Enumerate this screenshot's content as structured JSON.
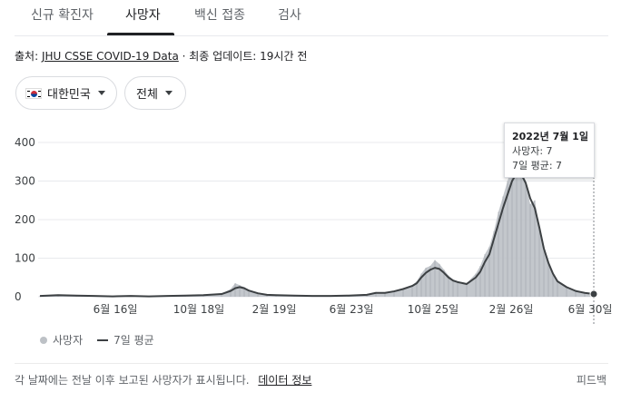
{
  "tabs": [
    {
      "label": "신규 확진자"
    },
    {
      "label": "사망자"
    },
    {
      "label": "백신 접종"
    },
    {
      "label": "검사"
    }
  ],
  "source": {
    "prefix": "출처:",
    "link": "JHU CSSE COVID-19 Data",
    "updated": "· 최종 업데이트: 19시간 전"
  },
  "filters": {
    "country": "대한민국",
    "region": "전체"
  },
  "tooltip": {
    "date": "2022년 7월 1일",
    "deaths": "사망자: 7",
    "avg": "7일 평균: 7"
  },
  "legend": {
    "bars": "사망자",
    "line": "7일 평균"
  },
  "footer": {
    "note": "각 날짜에는 전날 이후 보고된 사망자가 표시됩니다.",
    "link": "데이터 정보",
    "feedback": "피드백"
  },
  "colors": {
    "bars": "#bdc1c6",
    "line": "#3c4043",
    "grid": "#e8eaed"
  },
  "chart_data": {
    "type": "bar",
    "ylim": [
      0,
      400
    ],
    "y_ticks": [
      0,
      100,
      200,
      300,
      400
    ],
    "x_tick_labels": [
      "6월 16일",
      "10월 18일",
      "2월 19일",
      "6월 23일",
      "10월 25일",
      "2월 26일",
      "6월 30일"
    ],
    "series": [
      {
        "kind": "bar",
        "name": "사망자",
        "points": [
          [
            0,
            2
          ],
          [
            20,
            5
          ],
          [
            40,
            3
          ],
          [
            60,
            2
          ],
          [
            80,
            1
          ],
          [
            100,
            2
          ],
          [
            120,
            1
          ],
          [
            140,
            2
          ],
          [
            160,
            3
          ],
          [
            180,
            4
          ],
          [
            200,
            8
          ],
          [
            210,
            20
          ],
          [
            215,
            35
          ],
          [
            220,
            30
          ],
          [
            225,
            25
          ],
          [
            230,
            18
          ],
          [
            240,
            10
          ],
          [
            250,
            6
          ],
          [
            260,
            4
          ],
          [
            280,
            3
          ],
          [
            300,
            2
          ],
          [
            320,
            2
          ],
          [
            340,
            3
          ],
          [
            360,
            5
          ],
          [
            370,
            12
          ],
          [
            380,
            10
          ],
          [
            390,
            15
          ],
          [
            400,
            22
          ],
          [
            410,
            30
          ],
          [
            415,
            40
          ],
          [
            420,
            60
          ],
          [
            425,
            75
          ],
          [
            430,
            80
          ],
          [
            435,
            95
          ],
          [
            440,
            85
          ],
          [
            445,
            70
          ],
          [
            450,
            55
          ],
          [
            455,
            45
          ],
          [
            460,
            40
          ],
          [
            470,
            35
          ],
          [
            480,
            60
          ],
          [
            485,
            80
          ],
          [
            490,
            110
          ],
          [
            495,
            130
          ],
          [
            500,
            170
          ],
          [
            505,
            220
          ],
          [
            510,
            260
          ],
          [
            515,
            300
          ],
          [
            520,
            340
          ],
          [
            525,
            360
          ],
          [
            530,
            330
          ],
          [
            535,
            300
          ],
          [
            540,
            240
          ],
          [
            545,
            250
          ],
          [
            550,
            180
          ],
          [
            555,
            120
          ],
          [
            560,
            90
          ],
          [
            565,
            60
          ],
          [
            570,
            40
          ],
          [
            580,
            25
          ],
          [
            590,
            15
          ],
          [
            600,
            10
          ],
          [
            610,
            7
          ]
        ]
      },
      {
        "kind": "line",
        "name": "7일 평균",
        "points": [
          [
            0,
            2
          ],
          [
            20,
            4
          ],
          [
            40,
            3
          ],
          [
            60,
            2
          ],
          [
            80,
            1
          ],
          [
            100,
            2
          ],
          [
            120,
            1
          ],
          [
            140,
            2
          ],
          [
            160,
            3
          ],
          [
            180,
            4
          ],
          [
            200,
            7
          ],
          [
            210,
            15
          ],
          [
            215,
            22
          ],
          [
            220,
            25
          ],
          [
            225,
            22
          ],
          [
            230,
            16
          ],
          [
            240,
            9
          ],
          [
            250,
            5
          ],
          [
            260,
            4
          ],
          [
            280,
            3
          ],
          [
            300,
            2
          ],
          [
            320,
            2
          ],
          [
            340,
            3
          ],
          [
            360,
            5
          ],
          [
            370,
            10
          ],
          [
            380,
            10
          ],
          [
            390,
            14
          ],
          [
            400,
            20
          ],
          [
            410,
            28
          ],
          [
            415,
            35
          ],
          [
            420,
            50
          ],
          [
            425,
            62
          ],
          [
            430,
            70
          ],
          [
            435,
            75
          ],
          [
            440,
            72
          ],
          [
            445,
            62
          ],
          [
            450,
            50
          ],
          [
            455,
            42
          ],
          [
            460,
            38
          ],
          [
            470,
            33
          ],
          [
            480,
            50
          ],
          [
            485,
            65
          ],
          [
            490,
            90
          ],
          [
            495,
            110
          ],
          [
            500,
            150
          ],
          [
            505,
            190
          ],
          [
            510,
            230
          ],
          [
            515,
            265
          ],
          [
            520,
            300
          ],
          [
            525,
            320
          ],
          [
            530,
            318
          ],
          [
            535,
            295
          ],
          [
            540,
            255
          ],
          [
            545,
            230
          ],
          [
            550,
            180
          ],
          [
            555,
            125
          ],
          [
            560,
            88
          ],
          [
            565,
            60
          ],
          [
            570,
            40
          ],
          [
            580,
            25
          ],
          [
            590,
            15
          ],
          [
            600,
            10
          ],
          [
            610,
            7
          ]
        ]
      }
    ]
  }
}
